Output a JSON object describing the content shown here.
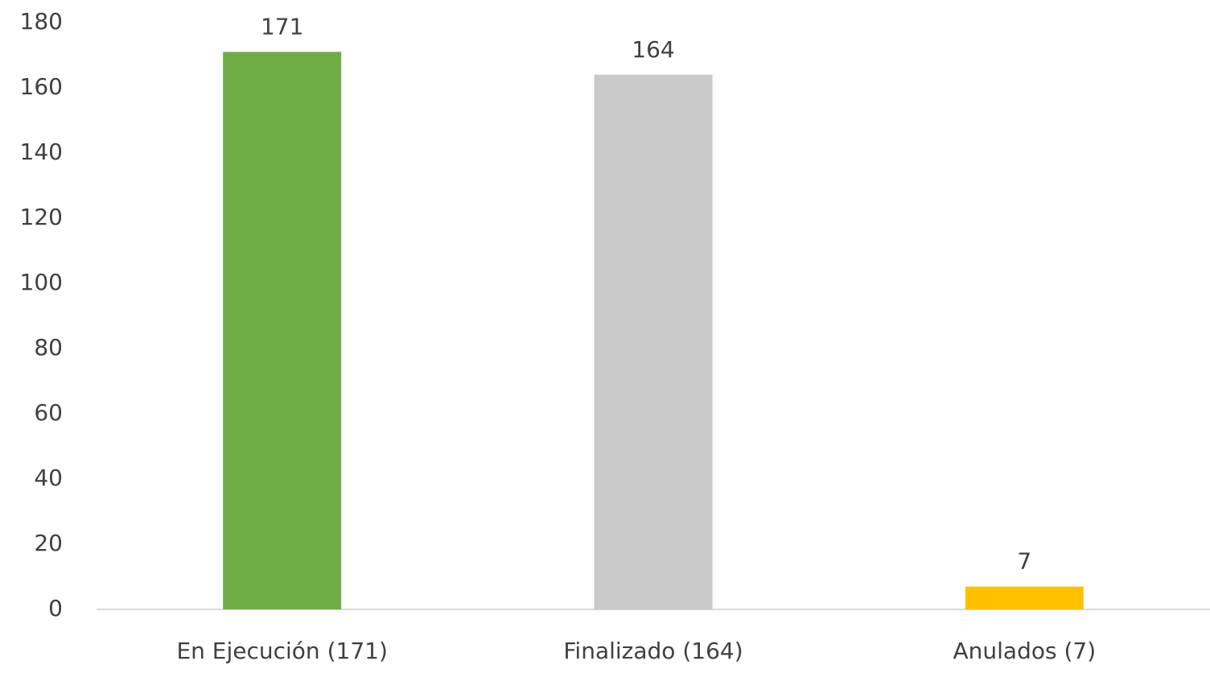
{
  "chart_data": {
    "type": "bar",
    "categories": [
      "En Ejecución (171)",
      "Finalizado (164)",
      "Anulados (7)"
    ],
    "values": [
      171,
      164,
      7
    ],
    "colors": [
      "#70ad47",
      "#c9c9c9",
      "#ffc000"
    ],
    "ylim": [
      0,
      180
    ],
    "yticks": [
      0,
      20,
      40,
      60,
      80,
      100,
      120,
      140,
      160,
      180
    ],
    "grid": false
  }
}
